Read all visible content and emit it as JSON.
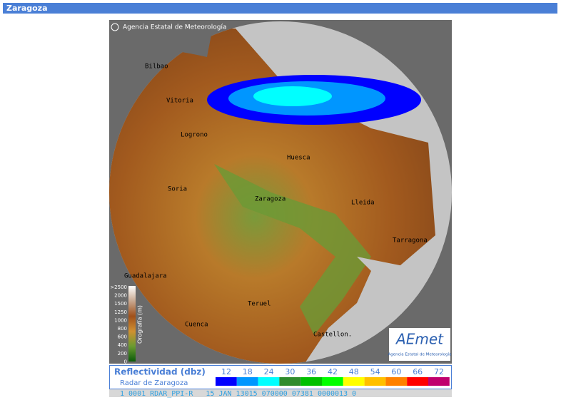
{
  "header": {
    "title": "Zaragoza"
  },
  "map": {
    "copyright": "Agencia Estatal de Meteorología",
    "cities": [
      "Bilbao",
      "Vitoria",
      "Logrono",
      "Huesca",
      "Soria",
      "Zaragoza",
      "Lleida",
      "Tarragona",
      "Guadalajara",
      "Teruel",
      "Cuenca",
      "Castellon."
    ],
    "elevation_legend": {
      "title": "Orografía (m)",
      "labels": [
        ">2500",
        "2000",
        "1500",
        "1250",
        "1000",
        "800",
        "600",
        "400",
        "200",
        "0"
      ]
    },
    "logo": {
      "name": "AEmet",
      "caption": "Agencia Estatal de Meteorología"
    }
  },
  "legend": {
    "title": "Reflectividad (dbz)",
    "subtitle": "Radar de Zaragoza",
    "items": [
      {
        "label": 12,
        "color": "#0000ff"
      },
      {
        "label": 18,
        "color": "#0096ff"
      },
      {
        "label": 24,
        "color": "#00ffff"
      },
      {
        "label": 30,
        "color": "#2e8b2e"
      },
      {
        "label": 36,
        "color": "#00c000"
      },
      {
        "label": 42,
        "color": "#00ff00"
      },
      {
        "label": 48,
        "color": "#ffff00"
      },
      {
        "label": 54,
        "color": "#ffc000"
      },
      {
        "label": 60,
        "color": "#ff8000"
      },
      {
        "label": 66,
        "color": "#ff0000"
      },
      {
        "label": 72,
        "color": "#c0006e"
      }
    ]
  },
  "status": "1 0001 RDAR_PPI-R   15 JAN 13015 070000 07381 0000013 0"
}
